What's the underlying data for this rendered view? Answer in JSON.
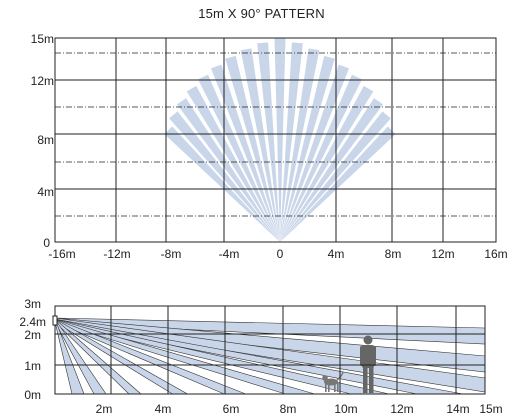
{
  "title": "15m X 90° PATTERN",
  "top_view": {
    "y_ticks": [
      "15m",
      "12m",
      "8m",
      "4m",
      "0"
    ],
    "x_ticks": [
      "-16m",
      "-12m",
      "-8m",
      "-4m",
      "0",
      "4m",
      "8m",
      "12m",
      "16m"
    ],
    "zone_count": 19,
    "spread_degrees": 90,
    "range": "15m"
  },
  "side_view": {
    "y_ticks": [
      "3m",
      "2.4m",
      "2m",
      "1m",
      "0m"
    ],
    "x_ticks": [
      "2m",
      "4m",
      "6m",
      "8m",
      "10m",
      "12m",
      "14m",
      "15m"
    ],
    "mount_height": "2.4m"
  },
  "colors": {
    "beam": "#c9d6ea",
    "grid": "#222222",
    "person": "#666666",
    "dog": "#777777"
  }
}
